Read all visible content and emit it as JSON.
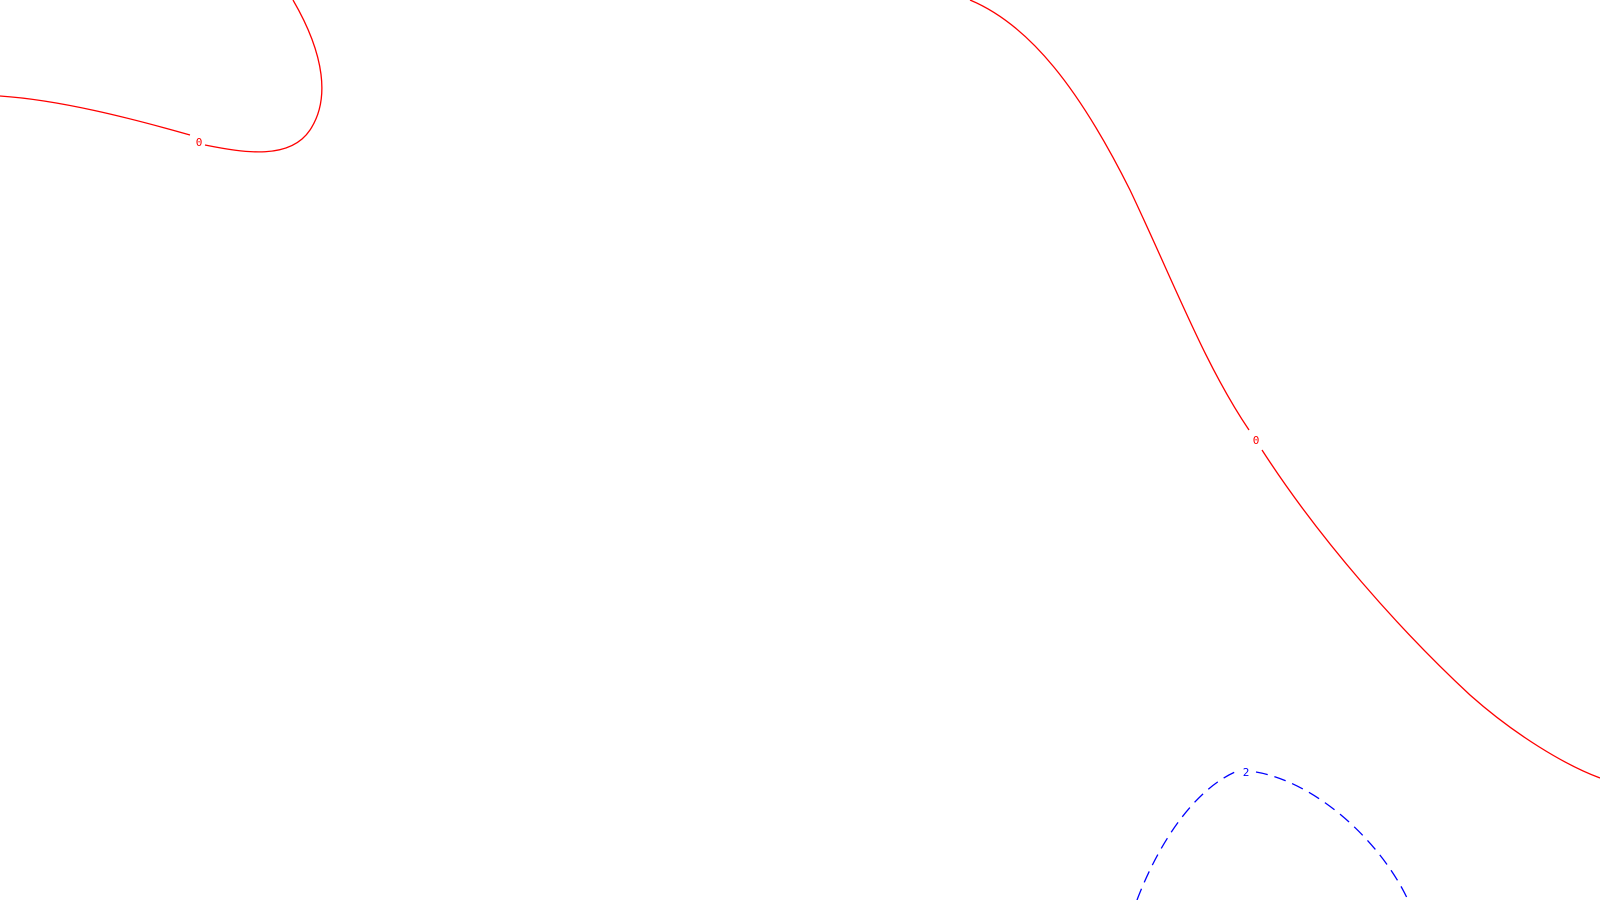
{
  "map": {
    "contours": [
      {
        "level": 0,
        "label": "0",
        "color": "#ff0000",
        "style": "solid"
      },
      {
        "level": 0,
        "label": "0",
        "color": "#ff0000",
        "style": "solid"
      },
      {
        "level": 2,
        "label": "2",
        "color": "#0000ff",
        "style": "dashed"
      }
    ]
  }
}
